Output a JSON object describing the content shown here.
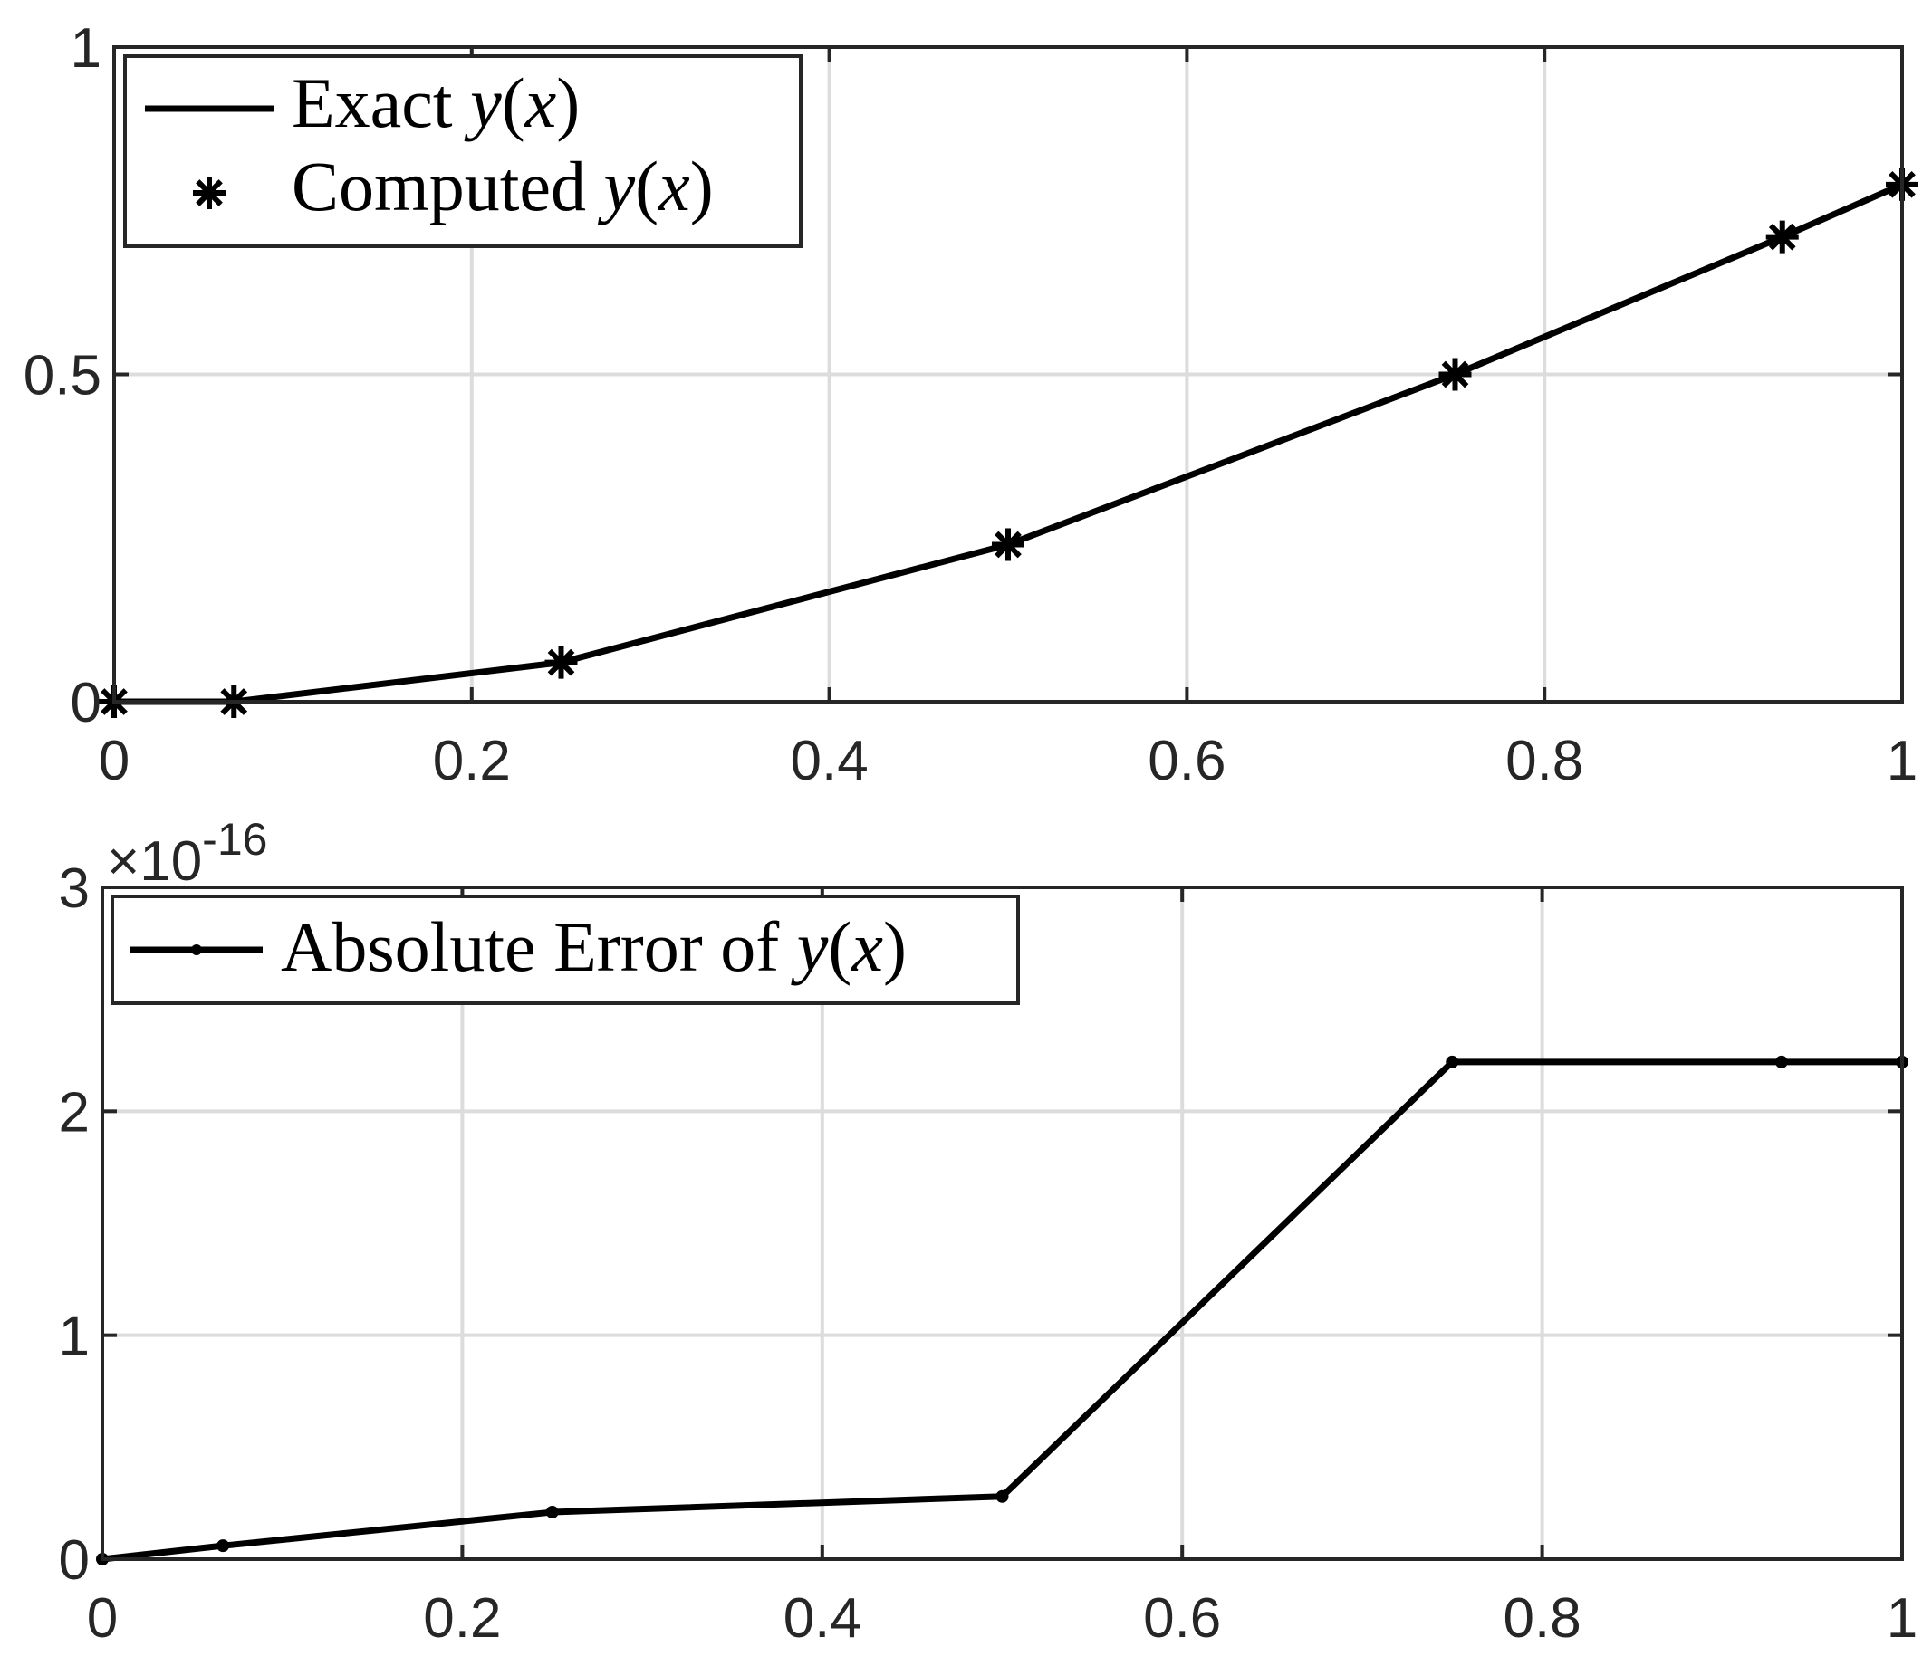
{
  "chart_data": [
    {
      "type": "line",
      "xlim": [
        0,
        1
      ],
      "ylim": [
        0,
        1
      ],
      "x_ticks": [
        "0",
        "0.2",
        "0.4",
        "0.6",
        "0.8",
        "1"
      ],
      "y_ticks": [
        "0",
        "0.5",
        "1"
      ],
      "grid": true,
      "legend_position": "top-left",
      "series": [
        {
          "name": "Exact y(x)",
          "marker": "none",
          "x": [
            0,
            0.067,
            0.25,
            0.5,
            0.75,
            0.933,
            1
          ],
          "y": [
            0,
            0.0,
            0.06,
            0.24,
            0.5,
            0.71,
            0.79
          ]
        },
        {
          "name": "Computed y(x)",
          "marker": "asterisk",
          "x": [
            0,
            0.067,
            0.25,
            0.5,
            0.75,
            0.933,
            1
          ],
          "y": [
            0,
            0.0,
            0.06,
            0.24,
            0.5,
            0.71,
            0.79
          ]
        }
      ]
    },
    {
      "type": "line",
      "xlim": [
        0,
        1
      ],
      "ylim": [
        0,
        3
      ],
      "x_ticks": [
        "0",
        "0.2",
        "0.4",
        "0.6",
        "0.8",
        "1"
      ],
      "y_ticks": [
        "0",
        "1",
        "2",
        "3"
      ],
      "y_exponent": "-16",
      "grid": true,
      "legend_position": "top-left",
      "series": [
        {
          "name": "Absolute Error of y(x)",
          "marker": "dot",
          "x": [
            0,
            0.067,
            0.25,
            0.5,
            0.75,
            0.933,
            1
          ],
          "y": [
            0,
            0.06,
            0.21,
            0.28,
            2.22,
            2.22,
            2.22
          ]
        }
      ]
    }
  ],
  "legend1": {
    "exact_prefix": "Exact ",
    "computed_prefix": "Computed ",
    "math_y": "y",
    "math_open": "(",
    "math_x": "x",
    "math_close": ")"
  },
  "legend2": {
    "error_prefix": "Absolute Error of ",
    "math_y": "y",
    "math_open": "(",
    "math_x": "x",
    "math_close": ")"
  },
  "exponent_label": {
    "times": "×10",
    "power": "-16"
  }
}
